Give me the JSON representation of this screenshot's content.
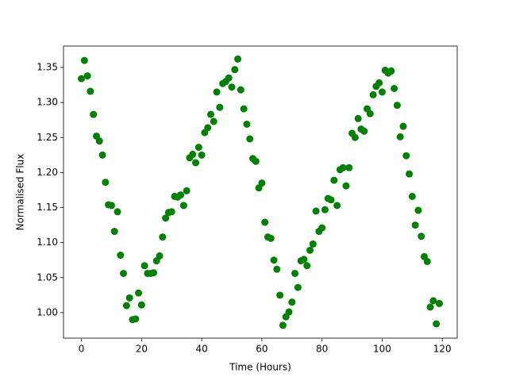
{
  "chart_data": {
    "type": "scatter",
    "x_label": "Time (Hours)",
    "y_label": "Normalised Flux",
    "color": "#008000",
    "x": [
      0,
      1,
      2,
      3,
      4,
      5,
      6,
      7,
      8,
      9,
      10,
      11,
      12,
      13,
      14,
      15,
      16,
      17,
      18,
      19,
      20,
      21,
      22,
      23,
      24,
      25,
      26,
      27,
      28,
      29,
      30,
      31,
      32,
      33,
      34,
      35,
      36,
      37,
      38,
      39,
      40,
      41,
      42,
      43,
      44,
      45,
      46,
      47,
      48,
      49,
      50,
      51,
      52,
      53,
      54,
      55,
      56,
      57,
      58,
      59,
      60,
      61,
      62,
      63,
      64,
      65,
      66,
      67,
      68,
      69,
      70,
      71,
      72,
      73,
      74,
      75,
      76,
      77,
      78,
      79,
      80,
      81,
      82,
      83,
      84,
      85,
      86,
      87,
      88,
      89,
      90,
      91,
      92,
      93,
      94,
      95,
      96,
      97,
      98,
      99,
      100,
      101,
      102,
      103,
      104,
      105,
      106,
      107,
      108,
      109,
      110,
      111,
      112,
      113,
      114,
      115,
      116,
      117,
      118,
      119
    ],
    "values": [
      1.334,
      1.36,
      1.338,
      1.316,
      1.283,
      1.252,
      1.245,
      1.225,
      1.186,
      1.154,
      1.153,
      1.116,
      1.144,
      1.082,
      1.056,
      1.01,
      1.021,
      0.99,
      0.991,
      1.028,
      1.011,
      1.067,
      1.056,
      1.056,
      1.057,
      1.074,
      1.081,
      1.108,
      1.135,
      1.143,
      1.144,
      1.166,
      1.165,
      1.168,
      1.153,
      1.174,
      1.221,
      1.226,
      1.214,
      1.236,
      1.225,
      1.257,
      1.264,
      1.283,
      1.273,
      1.315,
      1.293,
      1.327,
      1.33,
      1.335,
      1.322,
      1.347,
      1.362,
      1.318,
      1.291,
      1.269,
      1.248,
      1.22,
      1.216,
      1.178,
      1.185,
      1.129,
      1.108,
      1.106,
      1.075,
      1.062,
      1.025,
      0.982,
      0.994,
      1.001,
      1.015,
      1.056,
      1.036,
      1.074,
      1.076,
      1.067,
      1.089,
      1.098,
      1.145,
      1.116,
      1.121,
      1.147,
      1.163,
      1.161,
      1.189,
      1.153,
      1.204,
      1.207,
      1.181,
      1.207,
      1.256,
      1.25,
      1.277,
      1.262,
      1.259,
      1.291,
      1.284,
      1.311,
      1.323,
      1.328,
      1.315,
      1.346,
      1.342,
      1.345,
      1.32,
      1.296,
      1.251,
      1.266,
      1.224,
      1.198,
      1.166,
      1.125,
      1.146,
      1.109,
      1.08,
      1.073,
      1.008,
      1.017,
      0.984,
      1.013
    ],
    "xlim": [
      -5.95,
      124.95
    ],
    "ylim": [
      0.9636,
      1.3806
    ],
    "xticks": [
      0,
      20,
      40,
      60,
      80,
      100,
      120
    ],
    "yticks": [
      {
        "value": 1,
        "label": "1.00"
      },
      1.05,
      {
        "value": 1.1,
        "label": "1.10"
      },
      1.15,
      {
        "value": 1.2,
        "label": "1.20"
      },
      1.25,
      {
        "value": 1.3,
        "label": "1.30"
      },
      1.35
    ]
  }
}
